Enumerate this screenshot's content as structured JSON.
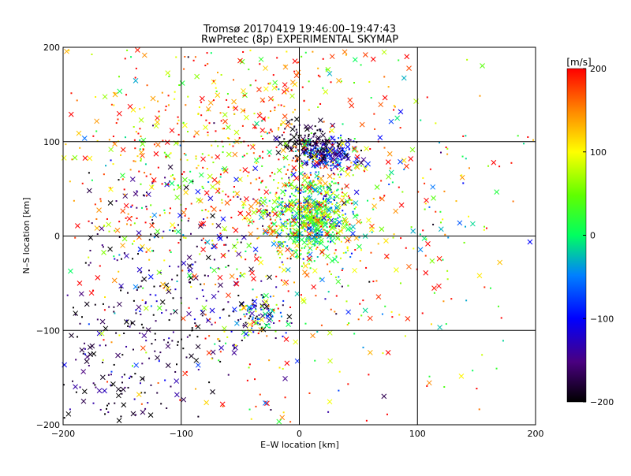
{
  "chart_data": {
    "type": "scatter",
    "title": "Tromsø 20170419 19:46:00–19:47:43",
    "subtitle": "RwPretec (8p) EXPERIMENTAL SKYMAP",
    "xlabel": "E–W location [km]",
    "ylabel": "N–S location [km]",
    "xlim": [
      -200,
      200
    ],
    "ylim": [
      -200,
      200
    ],
    "x_ticks": [
      -200,
      -100,
      0,
      100,
      200
    ],
    "y_ticks": [
      -200,
      -100,
      0,
      100,
      200
    ],
    "grid": true,
    "colorbar": {
      "label": "[m/s]",
      "range": [
        -200,
        200
      ],
      "ticks": [
        200,
        100,
        0,
        -100,
        -200
      ],
      "colormap": "rainbow: -200 black, -100 blue, 0 green/cyan, 100 yellow, 200 red"
    },
    "markers": [
      "dot",
      "cross"
    ],
    "clusters": [
      {
        "cx": 10,
        "cy": 20,
        "sx": 18,
        "sy": 22,
        "n": 700,
        "vmean": 30,
        "vsd": 70
      },
      {
        "cx": 25,
        "cy": 88,
        "sx": 12,
        "sy": 8,
        "n": 220,
        "vmean": -120,
        "vsd": 50
      },
      {
        "cx": 5,
        "cy": 100,
        "sx": 12,
        "sy": 10,
        "n": 120,
        "vmean": -185,
        "vsd": 20
      },
      {
        "cx": -35,
        "cy": -85,
        "sx": 10,
        "sy": 12,
        "n": 90,
        "vmean": -60,
        "vsd": 120
      },
      {
        "cx": -100,
        "cy": -60,
        "sx": 45,
        "sy": 70,
        "n": 280,
        "vmean": -170,
        "vsd": 40
      },
      {
        "cx": -160,
        "cy": -150,
        "sx": 30,
        "sy": 35,
        "n": 110,
        "vmean": -180,
        "vsd": 35
      },
      {
        "cx": -60,
        "cy": 80,
        "sx": 70,
        "sy": 70,
        "n": 650,
        "vmean": 140,
        "vsd": 80
      },
      {
        "cx": 0,
        "cy": 0,
        "sx": 110,
        "sy": 110,
        "n": 650,
        "vmean": 100,
        "vsd": 120
      }
    ]
  }
}
